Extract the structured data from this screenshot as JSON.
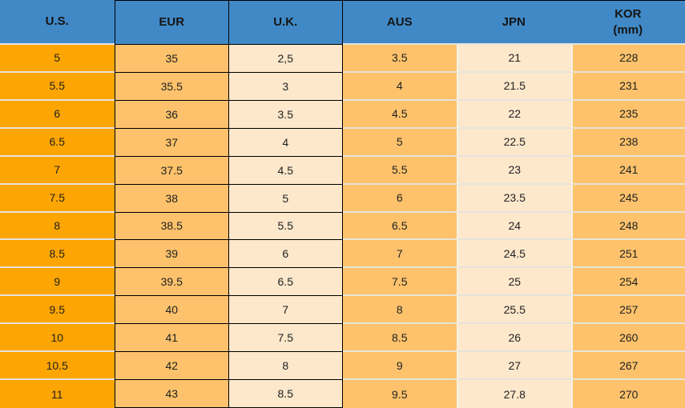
{
  "colors": {
    "header_bg": "#4189C6",
    "col_us_bg": "#FDA502",
    "col_orange_bg": "#FDC26B",
    "col_cream_bg": "#FDE8CC",
    "black_border": "#000000",
    "light_separator": "#E6E3DD",
    "header_text": "#141414",
    "cell_text": "#222222"
  },
  "chart_data": {
    "type": "table",
    "title": "",
    "columns": [
      {
        "label": "U.S."
      },
      {
        "label": "EUR"
      },
      {
        "label": "U.K."
      },
      {
        "label": "AUS"
      },
      {
        "label": "JPN"
      },
      {
        "label": "KOR",
        "sublabel": "(mm)"
      }
    ],
    "rows": [
      [
        "5",
        "35",
        "2,5",
        "3.5",
        "21",
        "228"
      ],
      [
        "5.5",
        "35.5",
        "3",
        "4",
        "21.5",
        "231"
      ],
      [
        "6",
        "36",
        "3.5",
        "4.5",
        "22",
        "235"
      ],
      [
        "6.5",
        "37",
        "4",
        "5",
        "22.5",
        "238"
      ],
      [
        "7",
        "37.5",
        "4.5",
        "5.5",
        "23",
        "241"
      ],
      [
        "7.5",
        "38",
        "5",
        "6",
        "23.5",
        "245"
      ],
      [
        "8",
        "38.5",
        "5.5",
        "6.5",
        "24",
        "248"
      ],
      [
        "8.5",
        "39",
        "6",
        "7",
        "24.5",
        "251"
      ],
      [
        "9",
        "39.5",
        "6.5",
        "7.5",
        "25",
        "254"
      ],
      [
        "9.5",
        "40",
        "7",
        "8",
        "25.5",
        "257"
      ],
      [
        "10",
        "41",
        "7.5",
        "8.5",
        "26",
        "260"
      ],
      [
        "10.5",
        "42",
        "8",
        "9",
        "27",
        "267"
      ],
      [
        "11",
        "43",
        "8.5",
        "9.5",
        "27.8",
        "270"
      ]
    ]
  }
}
